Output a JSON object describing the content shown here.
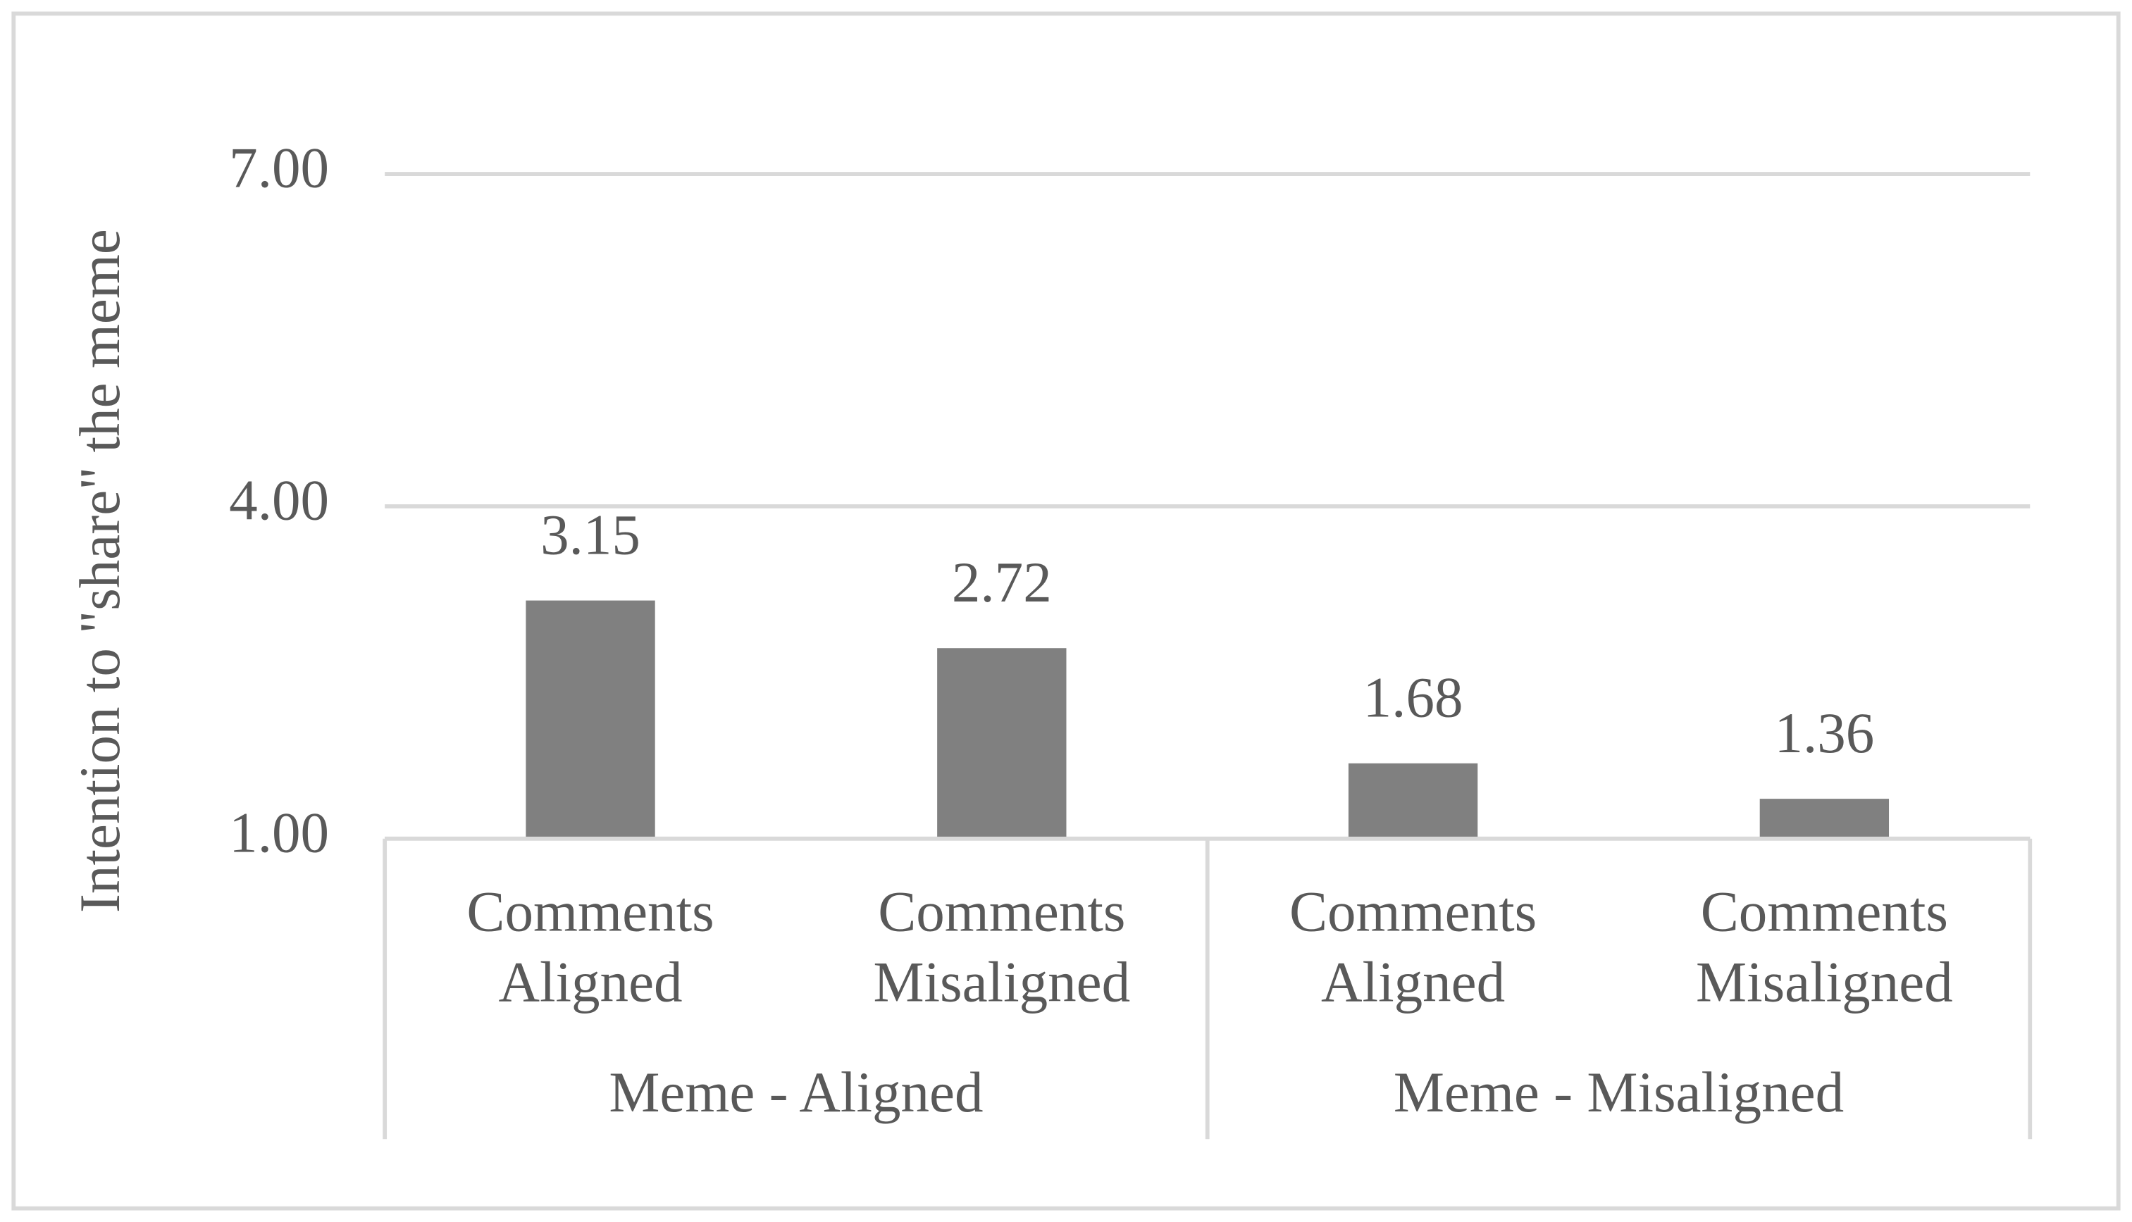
{
  "chart_data": {
    "type": "bar",
    "y_label": "Intention to \"share\" the meme",
    "categories": [
      [
        "Comments",
        "Aligned"
      ],
      [
        "Comments",
        "Misaligned"
      ],
      [
        "Comments",
        "Aligned"
      ],
      [
        "Comments",
        "Misaligned"
      ]
    ],
    "groups": [
      "Meme - Aligned",
      "Meme - Misaligned"
    ],
    "values": [
      3.15,
      2.72,
      1.68,
      1.36
    ],
    "color": "#808080",
    "ylim": [
      1,
      7
    ],
    "yticks": [
      {
        "value": 1,
        "label": "1.00"
      },
      {
        "value": 4,
        "label": "4.00"
      },
      {
        "value": 7,
        "label": "7.00"
      }
    ],
    "grid": true
  }
}
